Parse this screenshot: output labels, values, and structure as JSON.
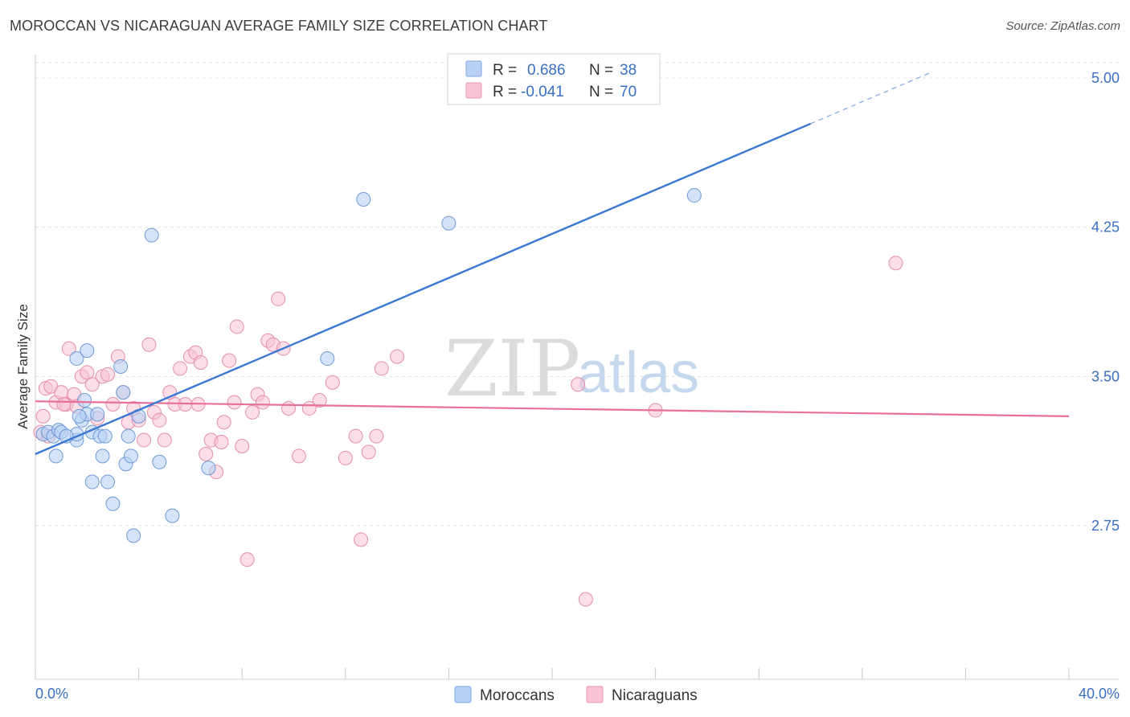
{
  "title": "MOROCCAN VS NICARAGUAN AVERAGE FAMILY SIZE CORRELATION CHART",
  "source": "Source: ZipAtlas.com",
  "watermark": {
    "zip": "ZIP",
    "atlas": "atlas"
  },
  "colors": {
    "blue": "#3a78d4",
    "blue_fill": "#b8d0f4",
    "pink": "#e8709a",
    "pink_fill": "#f7c3d5",
    "tick": "#3a6fc4",
    "grid": "#e3e3e3"
  },
  "legend": {
    "rows": [
      {
        "r_label": "R =",
        "r_value": "0.686",
        "n_label": "N =",
        "n_value": "38"
      },
      {
        "r_label": "R =",
        "r_value": "-0.041",
        "n_label": "N =",
        "n_value": "70"
      }
    ]
  },
  "bottom_legend": [
    "Moroccans",
    "Nicaraguans"
  ],
  "chart_data": {
    "type": "scatter",
    "title": "MOROCCAN VS NICARAGUAN AVERAGE FAMILY SIZE CORRELATION CHART",
    "xlabel": "",
    "ylabel": "Average Family Size",
    "xlim": [
      0,
      40
    ],
    "ylim": [
      2.03,
      5.08
    ],
    "x_tick_labels": [
      "0.0%",
      "40.0%"
    ],
    "y_ticks": [
      2.75,
      3.5,
      4.25,
      5.0
    ],
    "y_tick_labels": [
      "2.75",
      "3.50",
      "4.25",
      "5.00"
    ],
    "grid": "horizontal dashed",
    "legend_position": "top-center",
    "series": [
      {
        "name": "Moroccans",
        "color": "#3a78d4",
        "trend": {
          "x": [
            0,
            30.0
          ],
          "y": [
            3.11,
            4.77
          ],
          "dashed_extension_to": [
            34.7,
            5.03
          ]
        },
        "points": [
          [
            0.3,
            3.21
          ],
          [
            0.5,
            3.22
          ],
          [
            0.7,
            3.2
          ],
          [
            0.8,
            3.1
          ],
          [
            0.9,
            3.23
          ],
          [
            1.0,
            3.22
          ],
          [
            1.6,
            3.18
          ],
          [
            1.8,
            3.28
          ],
          [
            1.9,
            3.38
          ],
          [
            2.0,
            3.31
          ],
          [
            1.7,
            3.3
          ],
          [
            1.6,
            3.21
          ],
          [
            2.2,
            3.22
          ],
          [
            1.6,
            3.59
          ],
          [
            2.5,
            3.2
          ],
          [
            2.6,
            3.1
          ],
          [
            2.0,
            3.63
          ],
          [
            2.2,
            2.97
          ],
          [
            2.7,
            3.2
          ],
          [
            2.8,
            2.97
          ],
          [
            3.0,
            2.86
          ],
          [
            3.3,
            3.55
          ],
          [
            3.4,
            3.42
          ],
          [
            3.5,
            3.06
          ],
          [
            3.6,
            3.2
          ],
          [
            3.7,
            3.1
          ],
          [
            3.8,
            2.7
          ],
          [
            4.0,
            3.3
          ],
          [
            4.5,
            4.21
          ],
          [
            4.8,
            3.07
          ],
          [
            5.3,
            2.8
          ],
          [
            6.7,
            3.04
          ],
          [
            11.3,
            3.59
          ],
          [
            12.7,
            4.39
          ],
          [
            16.0,
            4.27
          ],
          [
            25.5,
            4.41
          ],
          [
            2.4,
            3.31
          ],
          [
            1.2,
            3.2
          ]
        ]
      },
      {
        "name": "Nicaraguans",
        "color": "#e8709a",
        "trend": {
          "x": [
            0,
            40
          ],
          "y": [
            3.375,
            3.3
          ]
        },
        "points": [
          [
            0.2,
            3.22
          ],
          [
            0.3,
            3.3
          ],
          [
            0.4,
            3.44
          ],
          [
            0.6,
            3.45
          ],
          [
            0.8,
            3.37
          ],
          [
            1.0,
            3.42
          ],
          [
            1.2,
            3.36
          ],
          [
            1.3,
            3.64
          ],
          [
            1.5,
            3.41
          ],
          [
            1.6,
            3.35
          ],
          [
            1.8,
            3.5
          ],
          [
            2.0,
            3.52
          ],
          [
            2.2,
            3.46
          ],
          [
            2.4,
            3.29
          ],
          [
            2.6,
            3.5
          ],
          [
            2.8,
            3.51
          ],
          [
            3.0,
            3.36
          ],
          [
            3.2,
            3.6
          ],
          [
            3.4,
            3.42
          ],
          [
            3.6,
            3.27
          ],
          [
            3.8,
            3.34
          ],
          [
            4.0,
            3.28
          ],
          [
            4.2,
            3.18
          ],
          [
            4.4,
            3.66
          ],
          [
            4.6,
            3.32
          ],
          [
            4.8,
            3.28
          ],
          [
            5.0,
            3.18
          ],
          [
            5.2,
            3.42
          ],
          [
            5.4,
            3.36
          ],
          [
            5.6,
            3.54
          ],
          [
            5.8,
            3.36
          ],
          [
            6.0,
            3.6
          ],
          [
            6.2,
            3.62
          ],
          [
            6.3,
            3.36
          ],
          [
            6.4,
            3.57
          ],
          [
            6.6,
            3.11
          ],
          [
            6.8,
            3.18
          ],
          [
            7.0,
            3.02
          ],
          [
            7.2,
            3.17
          ],
          [
            7.3,
            3.27
          ],
          [
            7.5,
            3.58
          ],
          [
            7.7,
            3.37
          ],
          [
            7.8,
            3.75
          ],
          [
            8.0,
            3.15
          ],
          [
            8.2,
            2.58
          ],
          [
            8.4,
            3.32
          ],
          [
            8.6,
            3.41
          ],
          [
            8.8,
            3.37
          ],
          [
            9.0,
            3.68
          ],
          [
            9.2,
            3.66
          ],
          [
            9.4,
            3.89
          ],
          [
            9.6,
            3.64
          ],
          [
            9.8,
            3.34
          ],
          [
            10.2,
            3.1
          ],
          [
            10.6,
            3.34
          ],
          [
            11.0,
            3.38
          ],
          [
            11.5,
            3.47
          ],
          [
            12.0,
            3.09
          ],
          [
            12.4,
            3.2
          ],
          [
            12.6,
            2.68
          ],
          [
            12.9,
            3.12
          ],
          [
            13.2,
            3.2
          ],
          [
            13.4,
            3.54
          ],
          [
            14.0,
            3.6
          ],
          [
            21.0,
            3.46
          ],
          [
            21.3,
            2.38
          ],
          [
            24.0,
            3.33
          ],
          [
            33.3,
            4.07
          ],
          [
            0.5,
            3.2
          ],
          [
            1.1,
            3.36
          ]
        ]
      }
    ]
  }
}
